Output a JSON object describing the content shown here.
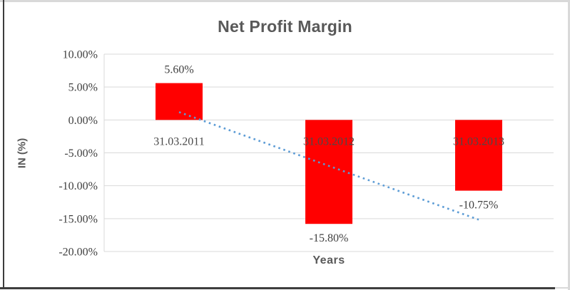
{
  "chart_data": {
    "type": "bar",
    "title": "Net Profit Margin",
    "xlabel": "Years",
    "ylabel": "IN (%)",
    "categories": [
      "31.03.2011",
      "31.03.2012",
      "31.03.2013"
    ],
    "values": [
      5.6,
      -15.8,
      -10.75
    ],
    "data_labels": [
      "5.60%",
      "-15.80%",
      "-10.75%"
    ],
    "yticks": [
      "10.00%",
      "5.00%",
      "0.00%",
      "-5.00%",
      "-10.00%",
      "-15.00%",
      "-20.00%"
    ],
    "ylim": [
      -20,
      10
    ],
    "ytick_step": 5,
    "grid": true,
    "legend": "none",
    "trendline": {
      "type": "linear",
      "style": "dotted"
    },
    "colors": {
      "bar": "#FF0000",
      "trendline": "#5B9BD5",
      "gridline": "#D9D9D9",
      "axis_line": "#D9D9D9",
      "title_text": "#595959",
      "label_text": "#404040"
    }
  }
}
